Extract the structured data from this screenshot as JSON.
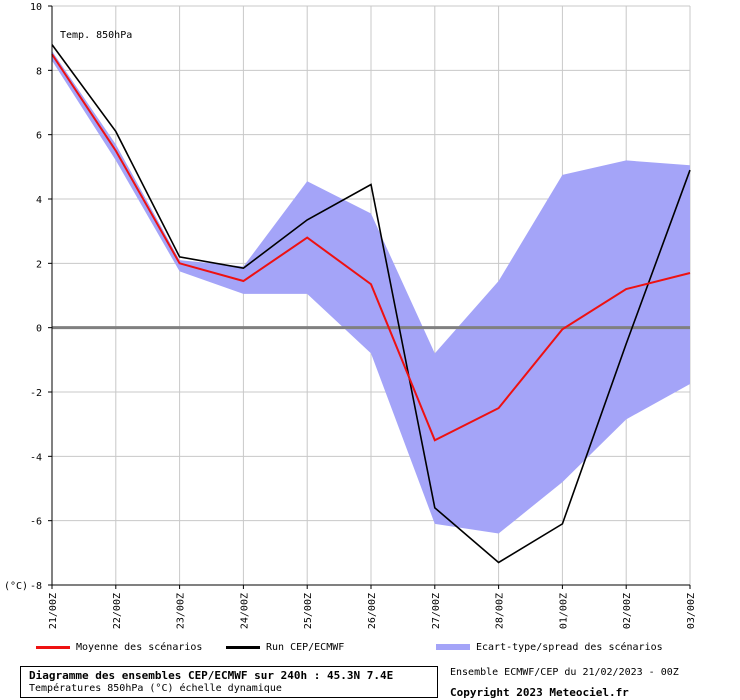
{
  "chart_data": {
    "type": "line",
    "annotation": "Temp. 850hPa",
    "ylabel": "(°C)",
    "ylim": [
      -8,
      10
    ],
    "yticks": [
      -8,
      -6,
      -4,
      -2,
      0,
      2,
      4,
      6,
      8,
      10
    ],
    "categories": [
      "21/00Z",
      "22/00Z",
      "23/00Z",
      "24/00Z",
      "25/00Z",
      "26/00Z",
      "27/00Z",
      "28/00Z",
      "01/00Z",
      "02/00Z",
      "03/00Z"
    ],
    "grid": true,
    "series": [
      {
        "name": "Moyenne des scénarios",
        "kind": "line",
        "color": "#ee1111",
        "values": [
          8.5,
          5.5,
          2.0,
          1.45,
          2.8,
          1.35,
          -3.5,
          -2.5,
          -0.05,
          1.2,
          1.7
        ]
      },
      {
        "name": "Run CEP/ECMWF",
        "kind": "line",
        "color": "#000000",
        "values": [
          8.8,
          6.1,
          2.2,
          1.85,
          3.35,
          4.45,
          -5.6,
          -7.3,
          -6.1,
          -0.5,
          4.9
        ]
      },
      {
        "name": "Ecart-type/spread des scénarios",
        "kind": "band",
        "color": "#a4a4f8",
        "upper": [
          8.6,
          5.7,
          2.1,
          1.9,
          4.55,
          3.55,
          -0.8,
          1.45,
          4.75,
          5.2,
          5.05
        ],
        "lower": [
          8.3,
          5.2,
          1.75,
          1.05,
          1.05,
          -0.8,
          -6.1,
          -6.4,
          -4.8,
          -2.85,
          -1.75
        ]
      }
    ]
  },
  "footer": {
    "title": "Diagramme des ensembles CEP/ECMWF sur 240h : 45.3N 7.4E",
    "subtitle": "Températures 850hPa (°C) échelle dynamique",
    "run_info": "Ensemble ECMWF/CEP du 21/02/2023 - 00Z",
    "copyright": "Copyright 2023 Meteociel.fr"
  }
}
